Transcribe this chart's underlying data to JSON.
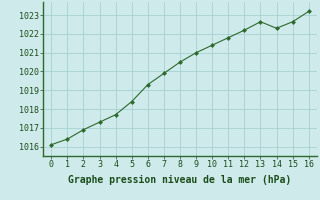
{
  "x": [
    0,
    1,
    2,
    3,
    4,
    5,
    6,
    7,
    8,
    9,
    10,
    11,
    12,
    13,
    14,
    15,
    16
  ],
  "y": [
    1016.1,
    1016.4,
    1016.9,
    1017.3,
    1017.7,
    1018.4,
    1019.3,
    1019.9,
    1020.5,
    1021.0,
    1021.4,
    1021.8,
    1022.2,
    1022.65,
    1022.3,
    1022.65,
    1023.2
  ],
  "title": "Graphe pression niveau de la mer (hPa)",
  "xlim": [
    -0.5,
    16.5
  ],
  "ylim": [
    1015.5,
    1023.7
  ],
  "yticks": [
    1016,
    1017,
    1018,
    1019,
    1020,
    1021,
    1022,
    1023
  ],
  "xticks": [
    0,
    1,
    2,
    3,
    4,
    5,
    6,
    7,
    8,
    9,
    10,
    11,
    12,
    13,
    14,
    15,
    16
  ],
  "line_color": "#2d6a2d",
  "marker_color": "#2d6a2d",
  "bg_color": "#ceeaea",
  "grid_color": "#9ecece",
  "title_color": "#1a4d1a",
  "tick_color": "#1a4d1a",
  "title_fontsize": 7.0,
  "tick_fontsize": 6.0
}
